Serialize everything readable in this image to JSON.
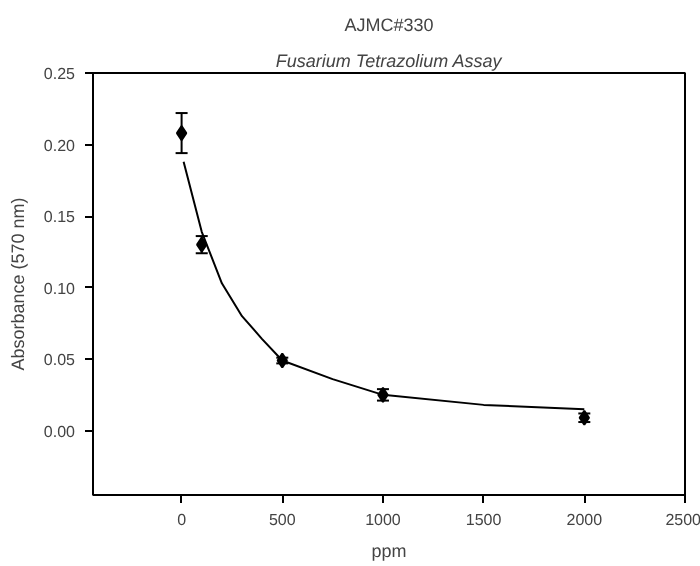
{
  "chart_data": {
    "type": "scatter",
    "title": "AJMC#330",
    "subtitle": "Fusarium Tetrazolium Assay",
    "xlabel": "ppm",
    "ylabel": "Absorbance (570 nm)",
    "xlim": [
      -440,
      2500
    ],
    "xticks": [
      0,
      500,
      1000,
      1500,
      2000,
      2500
    ],
    "ylim": [
      -0.045,
      0.25
    ],
    "yticks": [
      {
        "value": 0,
        "label": "0.00"
      },
      0.05,
      {
        "value": 0.1,
        "label": "0.10"
      },
      0.15,
      {
        "value": 0.2,
        "label": "0.20"
      },
      0.25
    ],
    "grid": false,
    "series": [
      {
        "marker": "diamond",
        "color": "#000000",
        "x": [
          0,
          100,
          500,
          1000,
          2000
        ],
        "values": [
          0.208,
          0.13,
          0.049,
          0.025,
          0.009
        ],
        "errors": [
          0.014,
          0.006,
          0.002,
          0.004,
          0.003
        ]
      },
      {
        "type": "line",
        "color": "#000000",
        "line_style": "solid",
        "x": [
          10,
          100,
          200,
          300,
          400,
          500,
          750,
          1000,
          1500,
          2000
        ],
        "values": [
          0.188,
          0.139,
          0.103,
          0.08,
          0.064,
          0.049,
          0.036,
          0.025,
          0.018,
          0.015
        ]
      }
    ]
  }
}
